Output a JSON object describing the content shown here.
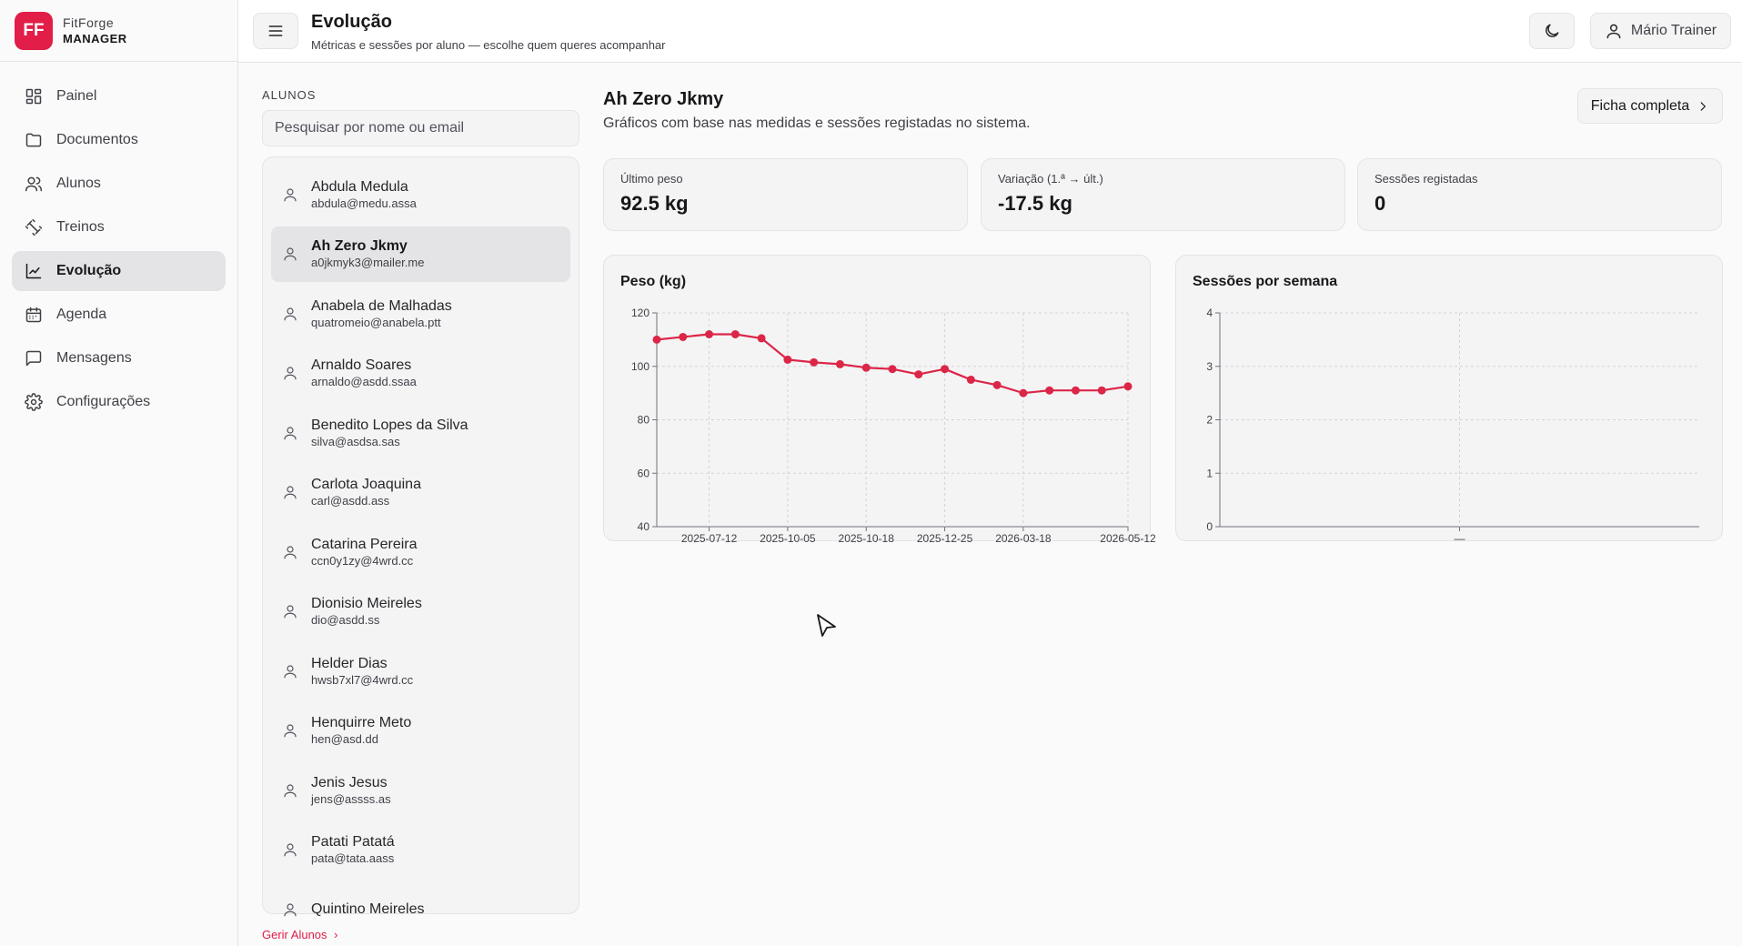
{
  "brand": {
    "logo": "FF",
    "line1": "FitForge",
    "line2": "MANAGER"
  },
  "nav": [
    {
      "label": "Painel",
      "icon": "dashboard-icon",
      "active": false
    },
    {
      "label": "Documentos",
      "icon": "folder-icon",
      "active": false
    },
    {
      "label": "Alunos",
      "icon": "users-icon",
      "active": false
    },
    {
      "label": "Treinos",
      "icon": "dumbbell-icon",
      "active": false
    },
    {
      "label": "Evolução",
      "icon": "chart-line-icon",
      "active": true
    },
    {
      "label": "Agenda",
      "icon": "calendar-icon",
      "active": false
    },
    {
      "label": "Mensagens",
      "icon": "message-icon",
      "active": false
    },
    {
      "label": "Configurações",
      "icon": "gear-icon",
      "active": false
    }
  ],
  "header": {
    "title": "Evolução",
    "subtitle": "Métricas e sessões por aluno — escolhe quem queres acompanhar",
    "user": "Mário Trainer"
  },
  "students": {
    "label": "ALUNOS",
    "search_placeholder": "Pesquisar por nome ou email",
    "manage_link": "Gerir Alunos",
    "items": [
      {
        "name": "Abdula Medula",
        "email": "abdula@medu.assa",
        "active": false
      },
      {
        "name": "Ah Zero Jkmy",
        "email": "a0jkmyk3@mailer.me",
        "active": true
      },
      {
        "name": "Anabela de Malhadas",
        "email": "quatromeio@anabela.ptt",
        "active": false
      },
      {
        "name": "Arnaldo Soares",
        "email": "arnaldo@asdd.ssaa",
        "active": false
      },
      {
        "name": "Benedito Lopes da Silva",
        "email": "silva@asdsa.sas",
        "active": false
      },
      {
        "name": "Carlota Joaquina",
        "email": "carl@asdd.ass",
        "active": false
      },
      {
        "name": "Catarina Pereira",
        "email": "ccn0y1zy@4wrd.cc",
        "active": false
      },
      {
        "name": "Dionisio Meireles",
        "email": "dio@asdd.ss",
        "active": false
      },
      {
        "name": "Helder Dias",
        "email": "hwsb7xl7@4wrd.cc",
        "active": false
      },
      {
        "name": "Henquirre Meto",
        "email": "hen@asd.dd",
        "active": false
      },
      {
        "name": "Jenis Jesus",
        "email": "jens@assss.as",
        "active": false
      },
      {
        "name": "Patati Patatá",
        "email": "pata@tata.aass",
        "active": false
      },
      {
        "name": "Quintino Meireles",
        "email": "",
        "active": false
      }
    ]
  },
  "selected": {
    "name": "Ah Zero Jkmy",
    "description": "Gráficos com base nas medidas e sessões registadas no sistema.",
    "full_button": "Ficha completa"
  },
  "stats": [
    {
      "label": "Último peso",
      "value": "92.5 kg"
    },
    {
      "label": "Variação (1.ª → últ.)",
      "value": "-17.5 kg"
    },
    {
      "label": "Sessões registadas",
      "value": "0"
    }
  ],
  "colors": {
    "accent": "#e11d48",
    "line": "#dc2647"
  },
  "chart_data": [
    {
      "type": "line",
      "title": "Peso (kg)",
      "ylim": [
        40,
        120
      ],
      "yticks": [
        "40",
        "60",
        "80",
        "100",
        "120"
      ],
      "xticks": [
        "2025-07-12",
        "2025-10-05",
        "2025-10-18",
        "2025-12-25",
        "2026-03-18",
        "2026-05-12"
      ],
      "values": [
        110,
        111,
        112,
        112,
        110.5,
        102.5,
        101.5,
        100.8,
        99.5,
        99,
        97,
        99,
        95,
        93,
        90,
        91,
        91,
        91,
        92.5
      ],
      "grid": true
    },
    {
      "type": "bar",
      "title": "Sessões por semana",
      "ylim": [
        0,
        4
      ],
      "yticks": [
        "0",
        "1",
        "2",
        "3",
        "4"
      ],
      "xticks": [
        "—"
      ],
      "values": [],
      "grid": true
    }
  ]
}
